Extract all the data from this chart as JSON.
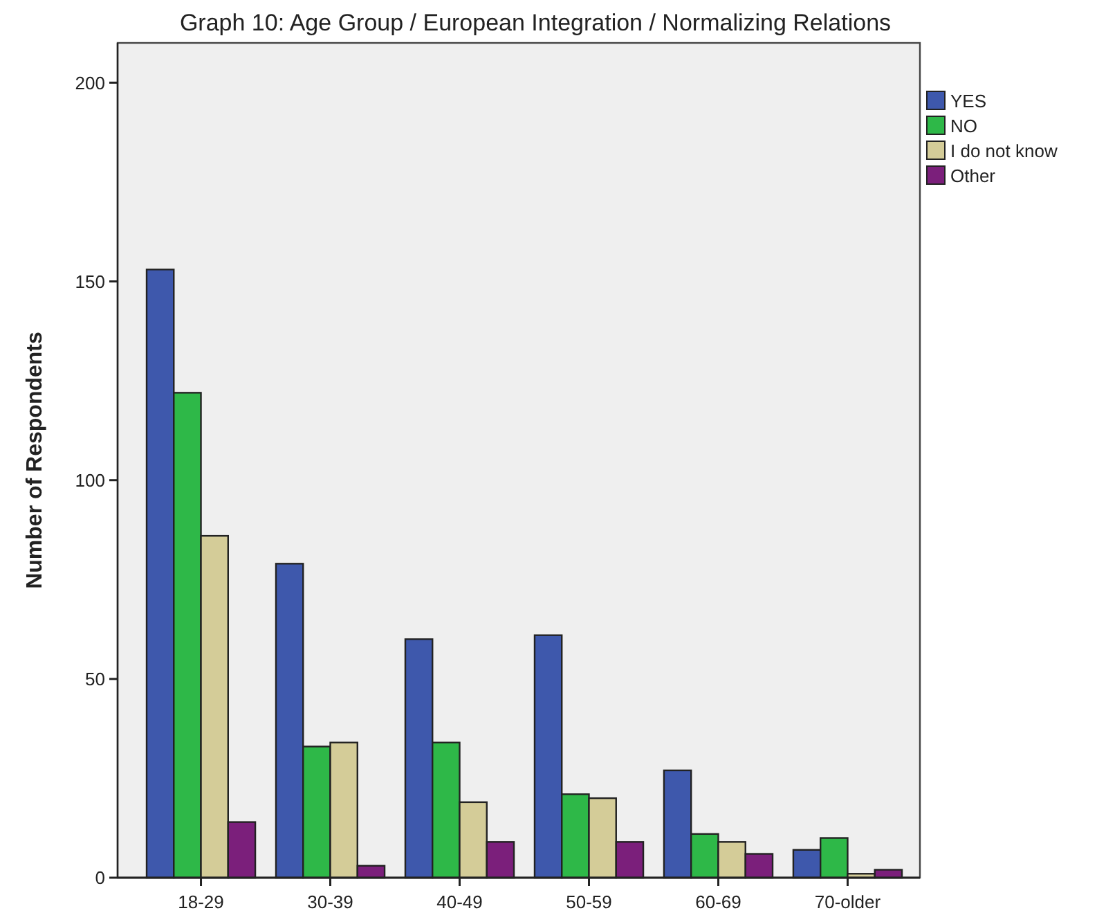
{
  "chart_data": {
    "type": "bar",
    "title": "Graph 10: Age Group / European Integration / Normalizing Relations",
    "ylabel": "Number of Respondents",
    "categories": [
      "18-29",
      "30-39",
      "40-49",
      "50-59",
      "60-69",
      "70-older"
    ],
    "series": [
      {
        "name": "YES",
        "color": "#3e58ac",
        "values": [
          153,
          79,
          60,
          61,
          27,
          7
        ]
      },
      {
        "name": "NO",
        "color": "#2eb848",
        "values": [
          122,
          33,
          34,
          21,
          11,
          10
        ]
      },
      {
        "name": "I do not know",
        "color": "#d4cc98",
        "values": [
          86,
          34,
          19,
          20,
          9,
          1
        ]
      },
      {
        "name": "Other",
        "color": "#7b1f7b",
        "values": [
          14,
          3,
          9,
          9,
          6,
          2
        ]
      }
    ],
    "ylim": [
      0,
      210
    ],
    "yticks": [
      0,
      50,
      100,
      150,
      200
    ],
    "grid": false,
    "legend": "right"
  }
}
